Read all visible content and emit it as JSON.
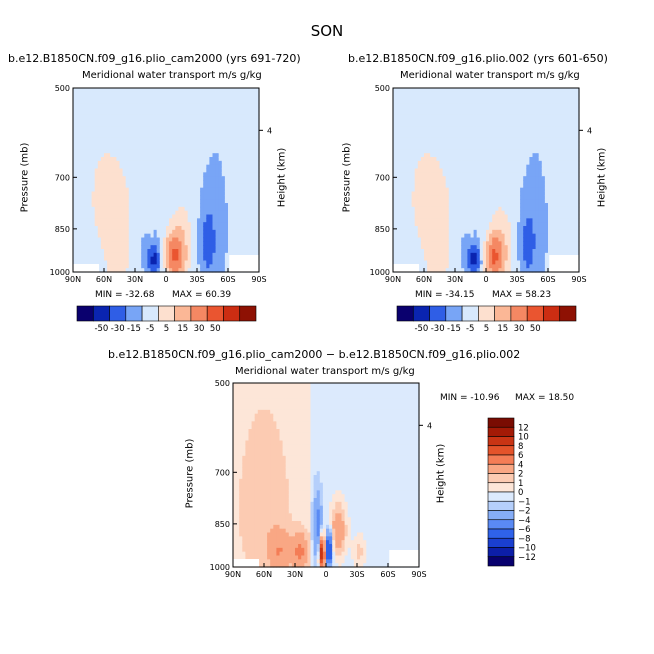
{
  "page_title": "SON",
  "chart_data": [
    {
      "type": "heatmap",
      "title": "b.e12.B1850CN.f09_g16.plio_cam2000 (yrs 691-720)",
      "subtitle": "Meridional water transport m/s g/kg",
      "xlabel": "",
      "ylabel": "Pressure (mb)",
      "y2label": "Height (km)",
      "x_ticks": [
        "90N",
        "60N",
        "30N",
        "0",
        "30S",
        "60S",
        "90S"
      ],
      "y_ticks": [
        "500",
        "700",
        "850",
        "1000"
      ],
      "y2_ticks": [
        "4"
      ],
      "xlim": [
        90,
        -90
      ],
      "ylim": [
        1000,
        500
      ],
      "min_label": "MIN = -32.68",
      "max_label": "MAX = 60.39",
      "colorbar_labels": [
        "-50",
        "-30",
        "-15",
        "-5",
        "5",
        "15",
        "30",
        "50"
      ],
      "features": [
        {
          "lat": -8,
          "p": 940,
          "v": 50,
          "wlat": 8,
          "wp": 70
        },
        {
          "lat": -15,
          "p": 900,
          "v": 15,
          "wlat": 12,
          "wp": 140
        },
        {
          "lat": 12,
          "p": 955,
          "v": -30,
          "wlat": 6,
          "wp": 50
        },
        {
          "lat": 20,
          "p": 930,
          "v": -10,
          "wlat": 10,
          "wp": 110
        },
        {
          "lat": -40,
          "p": 900,
          "v": -15,
          "wlat": 8,
          "wp": 130
        },
        {
          "lat": -48,
          "p": 850,
          "v": -6,
          "wlat": 12,
          "wp": 220
        },
        {
          "lat": 45,
          "p": 880,
          "v": 7,
          "wlat": 10,
          "wp": 140
        },
        {
          "lat": 60,
          "p": 760,
          "v": 3,
          "wlat": 25,
          "wp": 260
        }
      ]
    },
    {
      "type": "heatmap",
      "title": "b.e12.B1850CN.f09_g16.plio.002 (yrs 601-650)",
      "subtitle": "Meridional water transport m/s g/kg",
      "xlabel": "",
      "ylabel": "Pressure (mb)",
      "y2label": "Height (km)",
      "x_ticks": [
        "90N",
        "60N",
        "30N",
        "0",
        "30S",
        "60S",
        "90S"
      ],
      "y_ticks": [
        "500",
        "700",
        "850",
        "1000"
      ],
      "y2_ticks": [
        "4"
      ],
      "xlim": [
        90,
        -90
      ],
      "ylim": [
        1000,
        500
      ],
      "min_label": "MIN = -34.15",
      "max_label": "MAX = 58.23",
      "colorbar_labels": [
        "-50",
        "-30",
        "-15",
        "-5",
        "5",
        "15",
        "30",
        "50"
      ],
      "features": [
        {
          "lat": -8,
          "p": 945,
          "v": 48,
          "wlat": 8,
          "wp": 70
        },
        {
          "lat": -15,
          "p": 905,
          "v": 15,
          "wlat": 12,
          "wp": 140
        },
        {
          "lat": 12,
          "p": 955,
          "v": -32,
          "wlat": 6,
          "wp": 50
        },
        {
          "lat": 20,
          "p": 930,
          "v": -10,
          "wlat": 10,
          "wp": 110
        },
        {
          "lat": -40,
          "p": 905,
          "v": -14,
          "wlat": 8,
          "wp": 130
        },
        {
          "lat": -48,
          "p": 850,
          "v": -6,
          "wlat": 12,
          "wp": 220
        },
        {
          "lat": 45,
          "p": 880,
          "v": 7,
          "wlat": 10,
          "wp": 140
        },
        {
          "lat": 60,
          "p": 760,
          "v": 3,
          "wlat": 25,
          "wp": 260
        }
      ]
    },
    {
      "type": "heatmap",
      "title": "b.e12.B1850CN.f09_g16.plio_cam2000 − b.e12.B1850CN.f09_g16.plio.002",
      "subtitle": "Meridional water transport m/s g/kg",
      "xlabel": "",
      "ylabel": "Pressure (mb)",
      "y2label": "Height (km)",
      "x_ticks": [
        "90N",
        "60N",
        "30N",
        "0",
        "30S",
        "60S",
        "90S"
      ],
      "y_ticks": [
        "500",
        "700",
        "850",
        "1000"
      ],
      "y2_ticks": [
        "4"
      ],
      "xlim": [
        90,
        -90
      ],
      "ylim": [
        1000,
        500
      ],
      "min_label": "MIN = -10.96",
      "max_label": "MAX =  18.50",
      "colorbar_labels": [
        "12",
        "10",
        "8",
        "6",
        "4",
        "2",
        "1",
        "0",
        "−1",
        "−2",
        "−4",
        "−6",
        "−8",
        "−10",
        "−12"
      ],
      "features": [
        {
          "lat": 4,
          "p": 950,
          "v": 12,
          "wlat": 3,
          "wp": 60
        },
        {
          "lat": -3,
          "p": 935,
          "v": -10,
          "wlat": 3,
          "wp": 60
        },
        {
          "lat": 8,
          "p": 870,
          "v": -5,
          "wlat": 4,
          "wp": 110
        },
        {
          "lat": -12,
          "p": 870,
          "v": 4,
          "wlat": 8,
          "wp": 90
        },
        {
          "lat": 25,
          "p": 945,
          "v": 4,
          "wlat": 8,
          "wp": 60
        },
        {
          "lat": 45,
          "p": 940,
          "v": 3,
          "wlat": 10,
          "wp": 70
        },
        {
          "lat": -32,
          "p": 945,
          "v": 2,
          "wlat": 6,
          "wp": 60
        },
        {
          "lat": 60,
          "p": 800,
          "v": 1,
          "wlat": 25,
          "wp": 260
        }
      ]
    }
  ]
}
